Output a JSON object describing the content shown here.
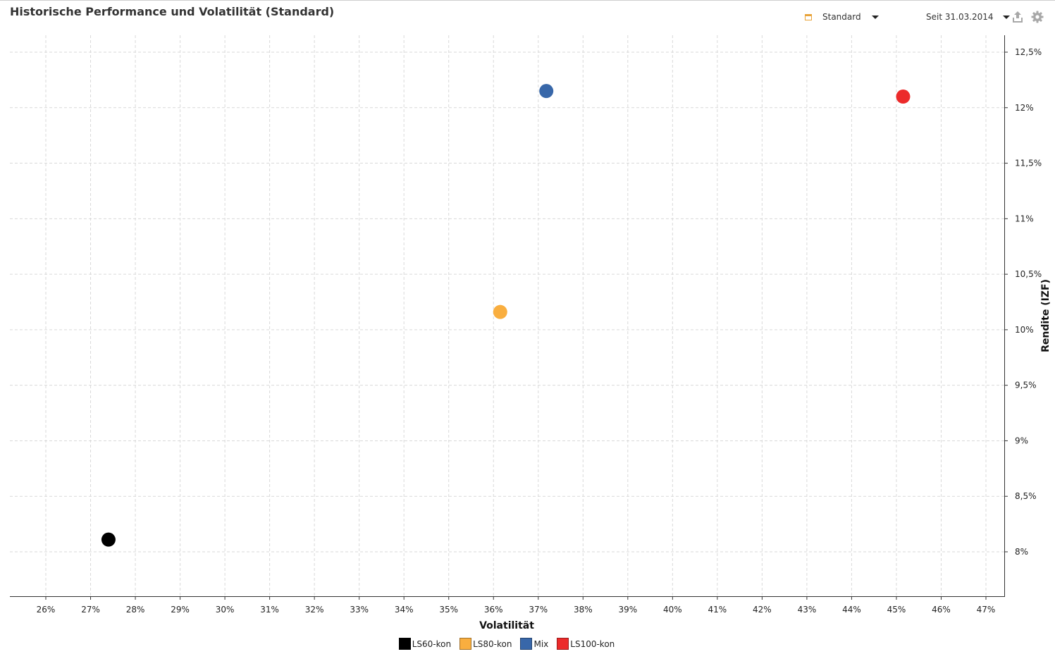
{
  "header": {
    "title": "Historische Performance und Volatilität (Standard)",
    "view_dropdown": {
      "label": "Standard",
      "icon": "calendar-icon"
    },
    "period_dropdown": {
      "label": "Seit 31.03.2014"
    },
    "export_icon": "export-icon",
    "settings_icon": "gear-icon"
  },
  "chart_data": {
    "type": "scatter",
    "title": "Historische Performance und Volatilität (Standard)",
    "xlabel": "Volatilität",
    "ylabel": "Rendite (IZF)",
    "xlim": [
      25.2,
      47.4
    ],
    "ylim": [
      7.8,
      12.7
    ],
    "x_ticks": [
      26,
      27,
      28,
      29,
      30,
      31,
      32,
      33,
      34,
      35,
      36,
      37,
      38,
      39,
      40,
      41,
      42,
      43,
      44,
      45,
      46,
      47
    ],
    "x_tick_labels": [
      "26%",
      "27%",
      "28%",
      "29%",
      "30%",
      "31%",
      "32%",
      "33%",
      "34%",
      "35%",
      "36%",
      "37%",
      "38%",
      "39%",
      "40%",
      "41%",
      "42%",
      "43%",
      "44%",
      "45%",
      "46%",
      "47%"
    ],
    "y_ticks": [
      8,
      8.5,
      9,
      9.5,
      10,
      10.5,
      11,
      11.5,
      12,
      12.5
    ],
    "y_tick_labels": [
      "8%",
      "8,5%",
      "9%",
      "9,5%",
      "10%",
      "10,5%",
      "11%",
      "11,5%",
      "12%",
      "12,5%"
    ],
    "y_axis_side": "right",
    "grid": true,
    "legend_position": "bottom",
    "series": [
      {
        "name": "LS60-kon",
        "color": "#000000",
        "points": [
          {
            "x": 27.4,
            "y": 8.11
          }
        ]
      },
      {
        "name": "LS80-kon",
        "color": "#f9ae3f",
        "points": [
          {
            "x": 36.15,
            "y": 10.16
          }
        ]
      },
      {
        "name": "Mix",
        "color": "#3867a9",
        "points": [
          {
            "x": 37.18,
            "y": 12.15
          }
        ]
      },
      {
        "name": "LS100-kon",
        "color": "#ec2a2a",
        "points": [
          {
            "x": 45.15,
            "y": 12.1
          }
        ]
      }
    ]
  }
}
